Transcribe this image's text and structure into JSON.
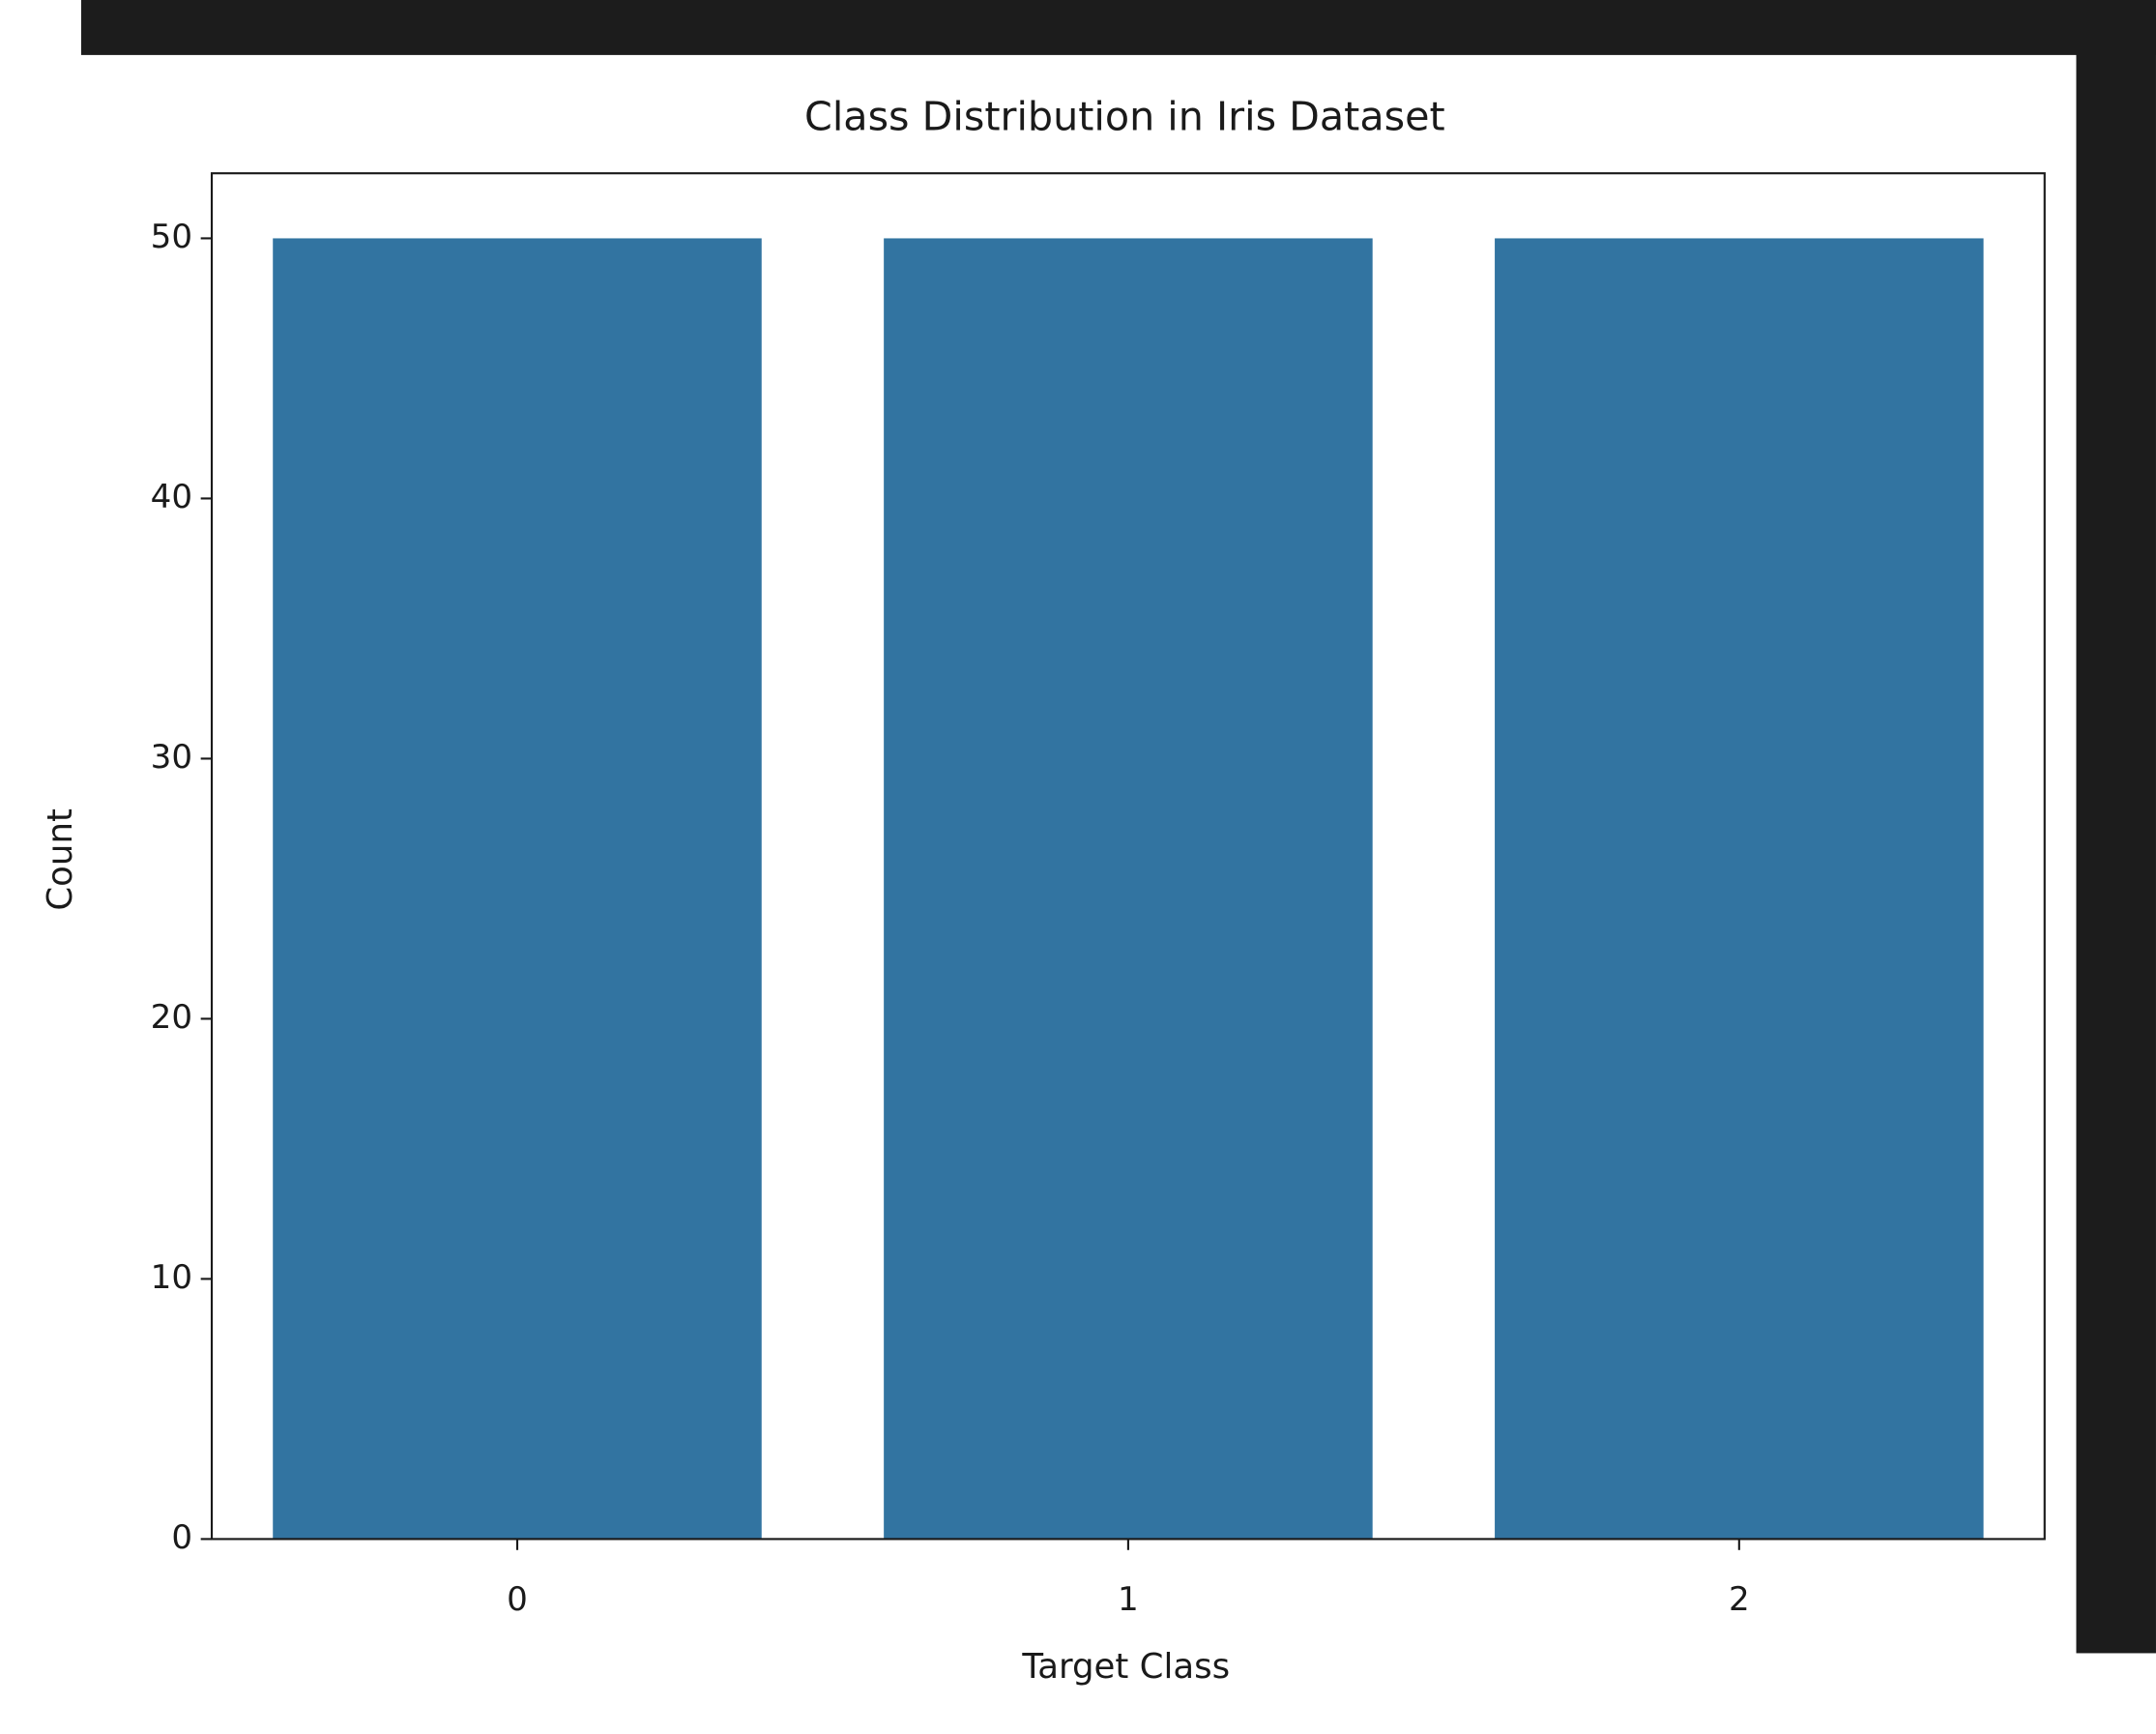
{
  "chart_data": {
    "type": "bar",
    "title": "Class Distribution in Iris Dataset",
    "x_label": "Target Class",
    "y_label": "Count",
    "categories": [
      "0",
      "1",
      "2"
    ],
    "values": [
      50,
      50,
      50
    ],
    "color": "#3274a1",
    "ylim": [
      0,
      52.5
    ],
    "yticks": [
      0,
      10,
      20,
      30,
      40,
      50
    ]
  }
}
